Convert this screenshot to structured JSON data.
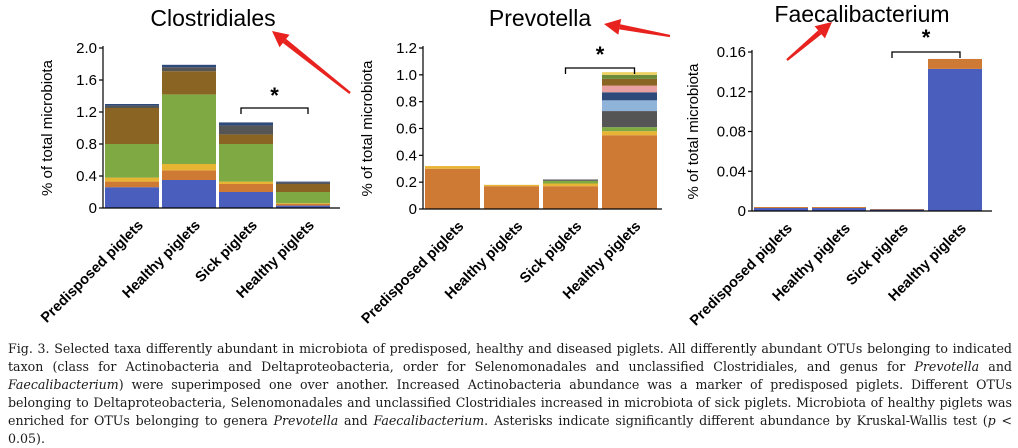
{
  "chart_data": [
    {
      "type": "bar",
      "stacked": true,
      "title": "Clostridiales",
      "ylabel": "% of total microbiota",
      "categories": [
        "Predisposed piglets",
        "Healthy piglets",
        "Sick piglets",
        "Healthy piglets"
      ],
      "ylim": [
        0,
        2.0
      ],
      "yticks": [
        "0",
        "0.4",
        "0.8",
        "1.2",
        "1.6",
        "2.0"
      ],
      "significance": {
        "from": 2,
        "to": 3,
        "label": "*"
      },
      "series": [
        {
          "color": "#4a5ebd",
          "values": [
            0.26,
            0.35,
            0.2,
            0.03
          ]
        },
        {
          "color": "#cf7a34",
          "values": [
            0.07,
            0.12,
            0.1,
            0.02
          ]
        },
        {
          "color": "#e8b433",
          "values": [
            0.05,
            0.08,
            0.03,
            0.01
          ]
        },
        {
          "color": "#7faa43",
          "values": [
            0.42,
            0.87,
            0.47,
            0.14
          ]
        },
        {
          "color": "#8a6422",
          "values": [
            0.45,
            0.29,
            0.12,
            0.1
          ]
        },
        {
          "color": "#555555",
          "values": [
            0.03,
            0.05,
            0.11,
            0.02
          ]
        },
        {
          "color": "#2e4a7a",
          "values": [
            0.02,
            0.03,
            0.04,
            0.01
          ]
        }
      ]
    },
    {
      "type": "bar",
      "stacked": true,
      "title": "Prevotella",
      "ylabel": "% of total microbiota",
      "categories": [
        "Predisposed piglets",
        "Healthy piglets",
        "Sick piglets",
        "Healthy piglets"
      ],
      "ylim": [
        0,
        1.2
      ],
      "yticks": [
        "0",
        "0.2",
        "0.4",
        "0.6",
        "0.8",
        "1.0",
        "1.2"
      ],
      "significance": {
        "from": 2,
        "to": 3,
        "label": "*"
      },
      "series": [
        {
          "color": "#cf7a34",
          "values": [
            0.3,
            0.17,
            0.17,
            0.55
          ]
        },
        {
          "color": "#e8b433",
          "values": [
            0.02,
            0.01,
            0.02,
            0.03
          ]
        },
        {
          "color": "#7faa43",
          "values": [
            0.0,
            0.0,
            0.02,
            0.03
          ]
        },
        {
          "color": "#555555",
          "values": [
            0.0,
            0.0,
            0.01,
            0.12
          ]
        },
        {
          "color": "#8fb3d9",
          "values": [
            0.0,
            0.0,
            0.0,
            0.08
          ]
        },
        {
          "color": "#2e4a7a",
          "values": [
            0.0,
            0.0,
            0.0,
            0.06
          ]
        },
        {
          "color": "#e8a0a0",
          "values": [
            0.0,
            0.0,
            0.0,
            0.05
          ]
        },
        {
          "color": "#8a6422",
          "values": [
            0.0,
            0.0,
            0.0,
            0.05
          ]
        },
        {
          "color": "#6b8a3a",
          "values": [
            0.0,
            0.0,
            0.0,
            0.03
          ]
        },
        {
          "color": "#f0d060",
          "values": [
            0.0,
            0.0,
            0.0,
            0.02
          ]
        }
      ]
    },
    {
      "type": "bar",
      "stacked": true,
      "title": "Faecalibacterium",
      "ylabel": "% of total microbiota",
      "categories": [
        "Predisposed piglets",
        "Healthy piglets",
        "Sick piglets",
        "Healthy piglets"
      ],
      "ylim": [
        0,
        0.16
      ],
      "yticks": [
        "0",
        "0.04",
        "0.08",
        "0.12",
        "0.16"
      ],
      "significance": {
        "from": 2,
        "to": 3,
        "label": "*"
      },
      "series": [
        {
          "color": "#4a5ebd",
          "values": [
            0.003,
            0.003,
            0.0015,
            0.143
          ]
        },
        {
          "color": "#cf7a34",
          "values": [
            0.001,
            0.001,
            0.0005,
            0.01
          ]
        }
      ]
    }
  ],
  "caption": {
    "part1": "Fig. 3.  Selected taxa differently abundant in microbiota of predisposed, healthy and diseased piglets. All differently abundant OTUs belonging to indicated taxon (class for Actinobacteria and Deltaproteobacteria, order for Selenomonadales and unclassified Clostridiales, and genus for ",
    "italic1": "Prevotella",
    "part2": " and ",
    "italic2": "Faecalibacterium",
    "part3": ") were superimposed one over another. Increased Actinobacteria abundance was a marker of predisposed piglets. Different OTUs belonging to Deltaproteobacteria, Selenomonadales and unclassified Clostridiales increased in microbiota of sick piglets. Microbiota of healthy piglets was enriched for OTUs belonging to genera ",
    "italic3": "Prevotella",
    "part4": " and ",
    "italic4": "Faecalibacterium",
    "part5": ". Asterisks indicate significantly different abundance by Kruskal-Wallis test (",
    "italic5": "p",
    "part6": " < 0.05)."
  },
  "annotation_color": "#e8231f"
}
